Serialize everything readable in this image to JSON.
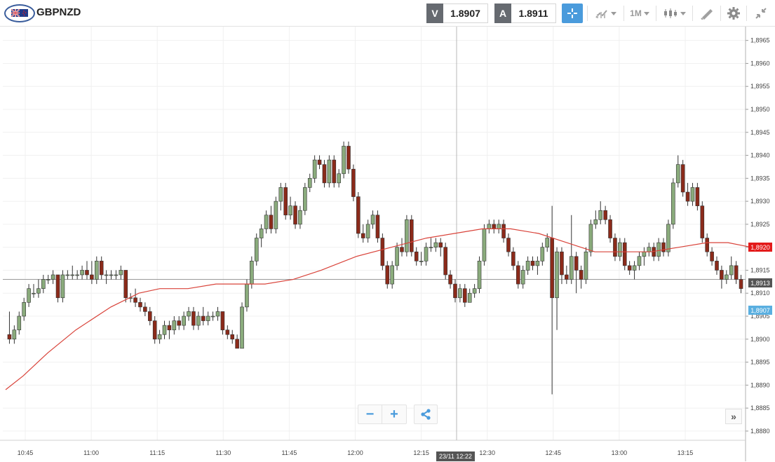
{
  "instrument": {
    "symbol": "GBPNZD",
    "flag_icon": "gb-nz-flag-icon"
  },
  "sell": {
    "label": "V",
    "price": "1.8907"
  },
  "buy": {
    "label": "A",
    "price": "1.8911"
  },
  "toolbar": {
    "crosshair_icon": "crosshair-icon",
    "indicators_icon": "indicators-icon",
    "timeframe_label": "1M",
    "chart_type_icon": "candlestick-icon",
    "draw_icon": "pencil-ruler-icon",
    "settings_icon": "gear-icon",
    "fullscreen_icon": "collapse-arrows-icon"
  },
  "zoom": {
    "out_label": "−",
    "in_label": "+",
    "share_icon": "share-icon"
  },
  "scroll_end_label": "»",
  "cursor_time_label": "23/11 12:22",
  "badges": {
    "ma": {
      "value": "1,8920",
      "color": "#e31b1b"
    },
    "last": {
      "value": "1,8913",
      "color": "#555555"
    },
    "sell": {
      "value": "1,8907",
      "color": "#5aafe0"
    }
  },
  "colors": {
    "up": "#8aab7c",
    "down": "#8b2a1a",
    "ma": "#d9433a",
    "accent": "#4a9bdc"
  },
  "chart_data": {
    "type": "candlestick",
    "ylim": [
      1.8878,
      1.8968
    ],
    "y_ticks": [
      "1,8880",
      "1,8885",
      "1,8890",
      "1,8895",
      "1,8900",
      "1,8905",
      "1,8910",
      "1,8915",
      "1,8920",
      "1,8925",
      "1,8930",
      "1,8935",
      "1,8940",
      "1,8945",
      "1,8950",
      "1,8955",
      "1,8960",
      "1,8965"
    ],
    "x_ticks": [
      "10:45",
      "11:00",
      "11:15",
      "11:30",
      "11:45",
      "12:00",
      "12:15",
      "12:30",
      "12:45",
      "13:00",
      "13:15"
    ],
    "crosshair_price": 1.8913,
    "candles": [
      [
        1.8901,
        1.89,
        1.8906,
        1.8899
      ],
      [
        1.89,
        1.8902,
        1.8903,
        1.8899
      ],
      [
        1.8902,
        1.8905,
        1.8906,
        1.8901
      ],
      [
        1.8905,
        1.8908,
        1.8909,
        1.8904
      ],
      [
        1.8908,
        1.8911,
        1.8912,
        1.8907
      ],
      [
        1.891,
        1.891,
        1.8912,
        1.8909
      ],
      [
        1.891,
        1.8911,
        1.8913,
        1.8909
      ],
      [
        1.8911,
        1.8913,
        1.8914,
        1.891
      ],
      [
        1.8913,
        1.8913,
        1.8914,
        1.8912
      ],
      [
        1.8913,
        1.8914,
        1.8915,
        1.8912
      ],
      [
        1.8914,
        1.8909,
        1.8914,
        1.8908
      ],
      [
        1.8909,
        1.8914,
        1.8915,
        1.8908
      ],
      [
        1.8914,
        1.8914,
        1.8915,
        1.8913
      ],
      [
        1.8914,
        1.8914,
        1.8916,
        1.8913
      ],
      [
        1.8914,
        1.8914,
        1.8915,
        1.8913
      ],
      [
        1.8914,
        1.8915,
        1.8916,
        1.8913
      ],
      [
        1.8915,
        1.8914,
        1.8917,
        1.8913
      ],
      [
        1.8914,
        1.8913,
        1.8917,
        1.8912
      ],
      [
        1.8913,
        1.8917,
        1.8918,
        1.8912
      ],
      [
        1.8917,
        1.8914,
        1.8918,
        1.8913
      ],
      [
        1.8914,
        1.8914,
        1.8915,
        1.8912
      ],
      [
        1.8914,
        1.8914,
        1.8915,
        1.8913
      ],
      [
        1.8914,
        1.8914,
        1.8915,
        1.8913
      ],
      [
        1.8914,
        1.8915,
        1.8916,
        1.8913
      ],
      [
        1.8915,
        1.8909,
        1.8915,
        1.8908
      ],
      [
        1.8909,
        1.8909,
        1.891,
        1.8908
      ],
      [
        1.8909,
        1.8908,
        1.8911,
        1.8907
      ],
      [
        1.8908,
        1.8907,
        1.8909,
        1.8906
      ],
      [
        1.8907,
        1.8906,
        1.8908,
        1.8905
      ],
      [
        1.8906,
        1.8904,
        1.8907,
        1.8903
      ],
      [
        1.8904,
        1.89,
        1.8905,
        1.8899
      ],
      [
        1.89,
        1.8901,
        1.8902,
        1.8899
      ],
      [
        1.8901,
        1.8903,
        1.8904,
        1.89
      ],
      [
        1.8903,
        1.8902,
        1.8904,
        1.89
      ],
      [
        1.8902,
        1.8904,
        1.8905,
        1.8901
      ],
      [
        1.8904,
        1.8903,
        1.8905,
        1.8902
      ],
      [
        1.8903,
        1.8905,
        1.8906,
        1.8902
      ],
      [
        1.8905,
        1.8906,
        1.8907,
        1.8904
      ],
      [
        1.8906,
        1.8903,
        1.8907,
        1.8902
      ],
      [
        1.8903,
        1.8905,
        1.8906,
        1.8902
      ],
      [
        1.8905,
        1.8904,
        1.8907,
        1.8903
      ],
      [
        1.8904,
        1.8905,
        1.8906,
        1.8903
      ],
      [
        1.8905,
        1.8905,
        1.8906,
        1.8904
      ],
      [
        1.8905,
        1.8906,
        1.8907,
        1.8904
      ],
      [
        1.8906,
        1.8902,
        1.8906,
        1.8901
      ],
      [
        1.8902,
        1.8901,
        1.8903,
        1.89
      ],
      [
        1.8901,
        1.89,
        1.8902,
        1.8899
      ],
      [
        1.89,
        1.8898,
        1.8901,
        1.8898
      ],
      [
        1.8898,
        1.8907,
        1.8908,
        1.8898
      ],
      [
        1.8907,
        1.8912,
        1.8913,
        1.8906
      ],
      [
        1.8912,
        1.8917,
        1.8918,
        1.8911
      ],
      [
        1.8917,
        1.8922,
        1.8923,
        1.8916
      ],
      [
        1.8922,
        1.8924,
        1.8925,
        1.892
      ],
      [
        1.8924,
        1.8927,
        1.8928,
        1.8923
      ],
      [
        1.8927,
        1.8924,
        1.8929,
        1.8923
      ],
      [
        1.8924,
        1.893,
        1.8931,
        1.8923
      ],
      [
        1.893,
        1.8933,
        1.8934,
        1.8928
      ],
      [
        1.8933,
        1.8927,
        1.8934,
        1.8926
      ],
      [
        1.8927,
        1.8929,
        1.8931,
        1.8926
      ],
      [
        1.8929,
        1.8925,
        1.893,
        1.8924
      ],
      [
        1.8925,
        1.8928,
        1.8929,
        1.8924
      ],
      [
        1.8928,
        1.8933,
        1.8934,
        1.8927
      ],
      [
        1.8933,
        1.8935,
        1.8936,
        1.8932
      ],
      [
        1.8935,
        1.8939,
        1.894,
        1.8934
      ],
      [
        1.8939,
        1.8938,
        1.894,
        1.8937
      ],
      [
        1.8938,
        1.8934,
        1.8939,
        1.8933
      ],
      [
        1.8934,
        1.8939,
        1.894,
        1.8933
      ],
      [
        1.8939,
        1.8934,
        1.894,
        1.8933
      ],
      [
        1.8934,
        1.8936,
        1.8937,
        1.8933
      ],
      [
        1.8936,
        1.8942,
        1.8943,
        1.8935
      ],
      [
        1.8942,
        1.8937,
        1.8943,
        1.8936
      ],
      [
        1.8937,
        1.8931,
        1.8938,
        1.893
      ],
      [
        1.8931,
        1.8923,
        1.8932,
        1.8922
      ],
      [
        1.8923,
        1.8922,
        1.8925,
        1.8921
      ],
      [
        1.8922,
        1.8925,
        1.8926,
        1.8921
      ],
      [
        1.8925,
        1.8927,
        1.8928,
        1.8924
      ],
      [
        1.8927,
        1.8922,
        1.8928,
        1.8921
      ],
      [
        1.8922,
        1.8916,
        1.8923,
        1.8915
      ],
      [
        1.8916,
        1.8912,
        1.8917,
        1.8911
      ],
      [
        1.8912,
        1.8916,
        1.8917,
        1.8911
      ],
      [
        1.8916,
        1.892,
        1.8921,
        1.8915
      ],
      [
        1.892,
        1.8919,
        1.8922,
        1.8918
      ],
      [
        1.8919,
        1.8926,
        1.8927,
        1.8918
      ],
      [
        1.8926,
        1.8919,
        1.8927,
        1.8918
      ],
      [
        1.8919,
        1.8917,
        1.892,
        1.8916
      ],
      [
        1.8917,
        1.8917,
        1.8919,
        1.8916
      ],
      [
        1.8917,
        1.892,
        1.8921,
        1.8916
      ],
      [
        1.892,
        1.892,
        1.8922,
        1.8919
      ],
      [
        1.892,
        1.8921,
        1.8922,
        1.8919
      ],
      [
        1.8921,
        1.892,
        1.8922,
        1.8918
      ],
      [
        1.892,
        1.8914,
        1.8921,
        1.8913
      ],
      [
        1.8914,
        1.8912,
        1.8915,
        1.8911
      ],
      [
        1.8912,
        1.8909,
        1.8913,
        1.8908
      ],
      [
        1.8909,
        1.8911,
        1.8912,
        1.8908
      ],
      [
        1.8911,
        1.8908,
        1.8912,
        1.8907
      ],
      [
        1.8908,
        1.891,
        1.8911,
        1.8908
      ],
      [
        1.891,
        1.8911,
        1.8912,
        1.8909
      ],
      [
        1.8911,
        1.8917,
        1.8918,
        1.891
      ],
      [
        1.8917,
        1.8924,
        1.8925,
        1.8916
      ],
      [
        1.8924,
        1.8925,
        1.8926,
        1.8923
      ],
      [
        1.8925,
        1.8924,
        1.8926,
        1.8923
      ],
      [
        1.8924,
        1.8925,
        1.8926,
        1.8923
      ],
      [
        1.8925,
        1.8922,
        1.8926,
        1.8921
      ],
      [
        1.8922,
        1.8919,
        1.8923,
        1.8918
      ],
      [
        1.8919,
        1.8916,
        1.892,
        1.8915
      ],
      [
        1.8916,
        1.8912,
        1.8917,
        1.8911
      ],
      [
        1.8912,
        1.8915,
        1.8916,
        1.8911
      ],
      [
        1.8915,
        1.8917,
        1.8918,
        1.8914
      ],
      [
        1.8917,
        1.8916,
        1.8918,
        1.8915
      ],
      [
        1.8916,
        1.8917,
        1.8918,
        1.8914
      ],
      [
        1.8917,
        1.892,
        1.8921,
        1.8916
      ],
      [
        1.892,
        1.8922,
        1.8923,
        1.8919
      ],
      [
        1.8922,
        1.8909,
        1.8929,
        1.8888
      ],
      [
        1.8909,
        1.8919,
        1.892,
        1.8902
      ],
      [
        1.8919,
        1.8914,
        1.892,
        1.8912
      ],
      [
        1.8914,
        1.8913,
        1.8916,
        1.8912
      ],
      [
        1.8913,
        1.8918,
        1.8927,
        1.8912
      ],
      [
        1.8918,
        1.8915,
        1.8919,
        1.891
      ],
      [
        1.8915,
        1.8913,
        1.8916,
        1.8911
      ],
      [
        1.8913,
        1.8919,
        1.892,
        1.8912
      ],
      [
        1.8919,
        1.8925,
        1.8926,
        1.8918
      ],
      [
        1.8925,
        1.8926,
        1.8928,
        1.8924
      ],
      [
        1.8926,
        1.8928,
        1.893,
        1.8925
      ],
      [
        1.8928,
        1.8926,
        1.8929,
        1.8925
      ],
      [
        1.8926,
        1.8922,
        1.8927,
        1.8921
      ],
      [
        1.8922,
        1.8918,
        1.8923,
        1.8917
      ],
      [
        1.8918,
        1.8921,
        1.8922,
        1.8917
      ],
      [
        1.8921,
        1.8916,
        1.8922,
        1.8915
      ],
      [
        1.8916,
        1.8915,
        1.8917,
        1.8914
      ],
      [
        1.8915,
        1.8916,
        1.8917,
        1.8913
      ],
      [
        1.8916,
        1.8918,
        1.8919,
        1.8915
      ],
      [
        1.8918,
        1.8919,
        1.892,
        1.8916
      ],
      [
        1.8919,
        1.892,
        1.8921,
        1.8918
      ],
      [
        1.892,
        1.8918,
        1.8921,
        1.8917
      ],
      [
        1.8918,
        1.8921,
        1.8922,
        1.8917
      ],
      [
        1.8921,
        1.8919,
        1.8922,
        1.8918
      ],
      [
        1.8919,
        1.8925,
        1.8926,
        1.8918
      ],
      [
        1.8925,
        1.8934,
        1.8935,
        1.8924
      ],
      [
        1.8934,
        1.8938,
        1.894,
        1.8933
      ],
      [
        1.8938,
        1.8932,
        1.8939,
        1.8931
      ],
      [
        1.8932,
        1.893,
        1.8934,
        1.8929
      ],
      [
        1.893,
        1.8933,
        1.8934,
        1.8929
      ],
      [
        1.8933,
        1.8929,
        1.8934,
        1.8928
      ],
      [
        1.8929,
        1.8922,
        1.893,
        1.8921
      ],
      [
        1.8922,
        1.8919,
        1.8923,
        1.8918
      ],
      [
        1.8919,
        1.8917,
        1.892,
        1.8916
      ],
      [
        1.8917,
        1.8915,
        1.8918,
        1.8914
      ],
      [
        1.8915,
        1.8913,
        1.8916,
        1.8911
      ],
      [
        1.8913,
        1.8914,
        1.8915,
        1.8912
      ],
      [
        1.8914,
        1.8916,
        1.8918,
        1.8913
      ],
      [
        1.8916,
        1.8913,
        1.8917,
        1.8912
      ],
      [
        1.8913,
        1.8911,
        1.8914,
        1.891
      ]
    ],
    "moving_average": [
      [
        0,
        1.8889
      ],
      [
        25,
        1.8892
      ],
      [
        60,
        1.8897
      ],
      [
        100,
        1.8902
      ],
      [
        150,
        1.8907
      ],
      [
        190,
        1.891
      ],
      [
        220,
        1.8911
      ],
      [
        260,
        1.8911
      ],
      [
        300,
        1.8912
      ],
      [
        340,
        1.8912
      ],
      [
        370,
        1.8912
      ],
      [
        410,
        1.8913
      ],
      [
        450,
        1.8915
      ],
      [
        500,
        1.8918
      ],
      [
        550,
        1.892
      ],
      [
        600,
        1.8922
      ],
      [
        640,
        1.8923
      ],
      [
        680,
        1.8924
      ],
      [
        720,
        1.8924
      ],
      [
        760,
        1.8923
      ],
      [
        800,
        1.8921
      ],
      [
        840,
        1.8919
      ],
      [
        880,
        1.8919
      ],
      [
        920,
        1.8919
      ],
      [
        960,
        1.892
      ],
      [
        1000,
        1.8921
      ],
      [
        1030,
        1.8921
      ],
      [
        1063,
        1.892
      ]
    ]
  }
}
